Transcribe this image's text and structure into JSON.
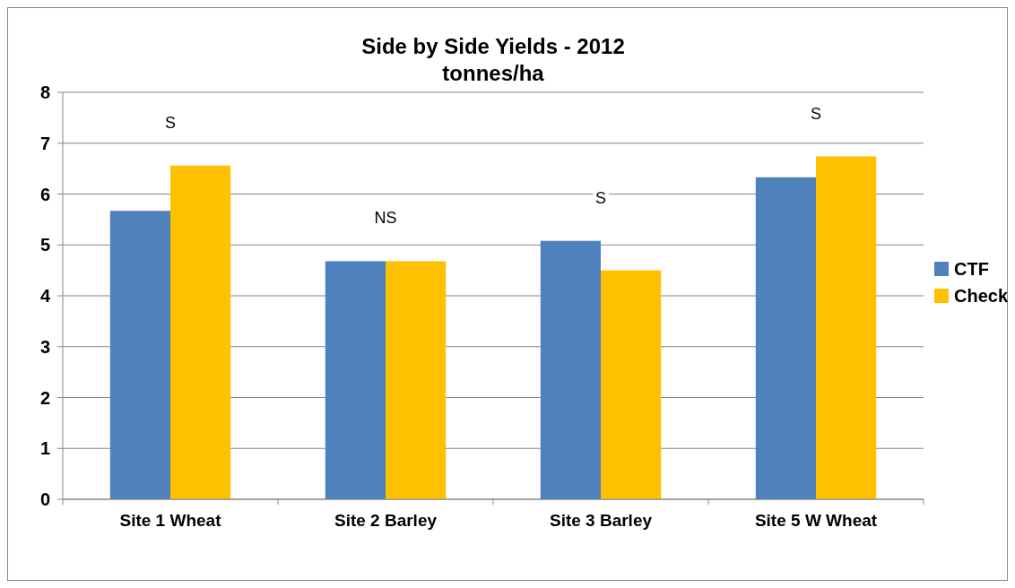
{
  "chart_data": {
    "type": "bar",
    "title": "Side by Side Yields - 2012",
    "subtitle": "tonnes/ha",
    "categories": [
      "Site 1 Wheat",
      "Site 2 Barley",
      "Site 3 Barley",
      "Site 5 W Wheat"
    ],
    "series": [
      {
        "name": "CTF",
        "color": "#4f81bd",
        "values": [
          5.67,
          4.68,
          5.08,
          6.33
        ]
      },
      {
        "name": "Check",
        "color": "#ffc000",
        "values": [
          6.56,
          4.68,
          4.5,
          6.74
        ]
      }
    ],
    "ylim": [
      0,
      8
    ],
    "yticks": [
      0,
      1,
      2,
      3,
      4,
      5,
      6,
      7,
      8
    ],
    "grid": "y",
    "legend": "right",
    "annotations": [
      "S",
      "NS",
      "S",
      "S"
    ]
  }
}
